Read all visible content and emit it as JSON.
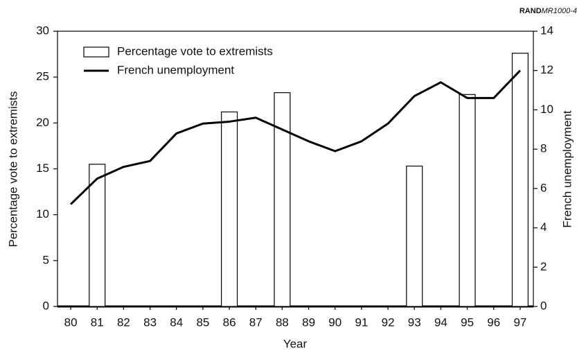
{
  "chart_data": {
    "type": "bar_line",
    "annotation": {
      "org": "RAND",
      "id": "MR1000-4"
    },
    "xlabel": "Year",
    "ylabel": "Percentage vote to extremists",
    "y2label": "French unemployment",
    "categories": [
      "80",
      "81",
      "82",
      "83",
      "84",
      "85",
      "86",
      "87",
      "88",
      "89",
      "90",
      "91",
      "92",
      "93",
      "94",
      "95",
      "96",
      "97"
    ],
    "series": [
      {
        "name": "Percentage vote to extremists",
        "type": "bar",
        "color": "#ffffff",
        "values": [
          null,
          15.5,
          null,
          null,
          null,
          null,
          21.2,
          null,
          23.3,
          null,
          null,
          null,
          null,
          15.3,
          null,
          23.1,
          null,
          27.6
        ]
      },
      {
        "name": "French unemployment",
        "type": "line",
        "color": "#000000",
        "axis": "y2",
        "values": [
          5.2,
          6.5,
          7.1,
          7.4,
          8.8,
          9.3,
          9.4,
          9.6,
          9.0,
          8.4,
          7.9,
          8.4,
          9.3,
          10.7,
          11.4,
          10.6,
          10.6,
          12.0
        ]
      }
    ],
    "ylim": [
      0,
      30
    ],
    "yticks": [
      0,
      5,
      10,
      15,
      20,
      25,
      30
    ],
    "y2lim": [
      0,
      14
    ],
    "y2ticks": [
      0,
      2,
      4,
      6,
      8,
      10,
      12,
      14
    ],
    "legend": "upper left",
    "grid": false
  }
}
